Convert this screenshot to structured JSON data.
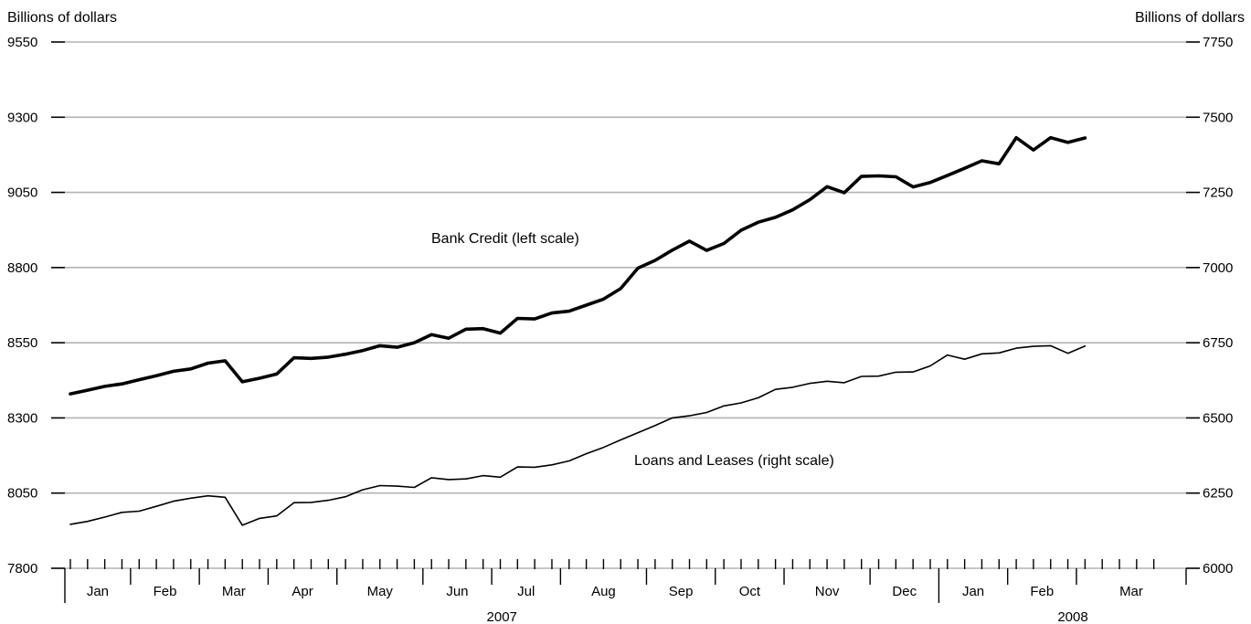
{
  "chart_data": {
    "type": "line",
    "left_axis": {
      "title": "Billions of dollars",
      "min": 7800,
      "max": 9550,
      "ticks": [
        "7800",
        "8050",
        "8300",
        "8550",
        "8800",
        "9050",
        "9300",
        "9550"
      ]
    },
    "right_axis": {
      "title": "Billions of dollars",
      "min": 6000,
      "max": 7750,
      "ticks": [
        "6000",
        "6250",
        "6500",
        "6750",
        "7000",
        "7250",
        "7500",
        "7750"
      ]
    },
    "grid": true,
    "months": [
      "Jan",
      "Feb",
      "Mar",
      "Apr",
      "May",
      "Jun",
      "Jul",
      "Aug",
      "Sep",
      "Oct",
      "Nov",
      "Dec",
      "Jan",
      "Feb",
      "Mar"
    ],
    "years": [
      "2007",
      "2008"
    ],
    "weeks_per_month": [
      4,
      4,
      4,
      4,
      5,
      4,
      4,
      5,
      4,
      4,
      5,
      4,
      4,
      4,
      5
    ],
    "series": [
      {
        "name": "Bank Credit (left scale)",
        "axis": "left",
        "values": [
          8380,
          8392,
          8405,
          8413,
          8427,
          8440,
          8455,
          8463,
          8482,
          8490,
          8420,
          8432,
          8446,
          8500,
          8498,
          8502,
          8512,
          8524,
          8540,
          8535,
          8550,
          8577,
          8565,
          8595,
          8597,
          8582,
          8631,
          8629,
          8649,
          8655,
          8675,
          8695,
          8730,
          8798,
          8824,
          8858,
          8888,
          8857,
          8880,
          8924,
          8951,
          8967,
          8992,
          9026,
          9069,
          9049,
          9103,
          9105,
          9102,
          9068,
          9083,
          9106,
          9130,
          9155,
          9145,
          9232,
          9191,
          9232,
          9216,
          9231
        ]
      },
      {
        "name": "Loans and Leases (right scale)",
        "axis": "right",
        "values": [
          6146,
          6156,
          6170,
          6186,
          6190,
          6206,
          6223,
          6233,
          6241,
          6236,
          6143,
          6166,
          6174,
          6218,
          6219,
          6226,
          6238,
          6261,
          6275,
          6273,
          6269,
          6301,
          6295,
          6297,
          6308,
          6303,
          6337,
          6336,
          6344,
          6357,
          6381,
          6402,
          6427,
          6451,
          6475,
          6500,
          6507,
          6518,
          6540,
          6550,
          6567,
          6595,
          6602,
          6615,
          6622,
          6617,
          6638,
          6639,
          6652,
          6653,
          6673,
          6709,
          6695,
          6713,
          6716,
          6732,
          6738,
          6740,
          6715,
          6739
        ]
      }
    ]
  }
}
